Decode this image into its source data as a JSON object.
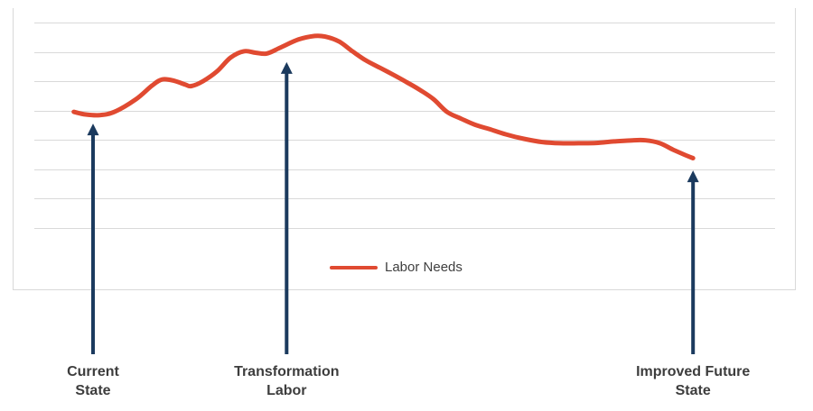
{
  "chart_data": {
    "type": "line",
    "legend": {
      "label": "Labor Needs",
      "position": "bottom-center"
    },
    "axes": {
      "x_tick_labels": [],
      "y_tick_labels": [],
      "x_range": [
        0,
        100
      ],
      "y_range": [
        0,
        7
      ],
      "gridline_count": 8,
      "grid": "horizontal-only"
    },
    "colors": {
      "line": "#e04a31",
      "arrow": "#1b3a5e",
      "grid": "#d9d9d9",
      "border": "#d9d9d9",
      "label_text": "#3d3d3d",
      "legend_text": "#3f3f3f"
    },
    "series": [
      {
        "name": "Labor Needs",
        "points": [
          [
            5.1,
            3.95
          ],
          [
            6.7,
            3.86
          ],
          [
            8.6,
            3.84
          ],
          [
            10.6,
            3.95
          ],
          [
            13.5,
            4.38
          ],
          [
            15.7,
            4.85
          ],
          [
            17.1,
            5.06
          ],
          [
            18.7,
            5.01
          ],
          [
            20.2,
            4.88
          ],
          [
            21.0,
            4.83
          ],
          [
            22.6,
            5.0
          ],
          [
            24.5,
            5.34
          ],
          [
            26.3,
            5.8
          ],
          [
            28.1,
            6.02
          ],
          [
            29.7,
            5.97
          ],
          [
            31.2,
            5.94
          ],
          [
            33.0,
            6.14
          ],
          [
            35.5,
            6.42
          ],
          [
            37.7,
            6.54
          ],
          [
            39.1,
            6.52
          ],
          [
            41.0,
            6.35
          ],
          [
            42.8,
            6.02
          ],
          [
            44.6,
            5.71
          ],
          [
            46.5,
            5.46
          ],
          [
            48.3,
            5.22
          ],
          [
            50.1,
            4.97
          ],
          [
            52.0,
            4.69
          ],
          [
            53.8,
            4.38
          ],
          [
            55.6,
            3.95
          ],
          [
            57.5,
            3.72
          ],
          [
            59.3,
            3.52
          ],
          [
            61.5,
            3.35
          ],
          [
            63.6,
            3.18
          ],
          [
            66.0,
            3.03
          ],
          [
            68.5,
            2.92
          ],
          [
            70.9,
            2.88
          ],
          [
            73.4,
            2.88
          ],
          [
            75.8,
            2.89
          ],
          [
            78.2,
            2.94
          ],
          [
            80.7,
            2.98
          ],
          [
            82.5,
            2.98
          ],
          [
            84.4,
            2.88
          ],
          [
            86.2,
            2.66
          ],
          [
            87.8,
            2.48
          ],
          [
            88.9,
            2.37
          ]
        ]
      }
    ],
    "annotations": [
      {
        "label": "Current\nState",
        "x": 7.7,
        "arrow_tip_y": 3.55
      },
      {
        "label": "Transformation\nLabor",
        "x": 33.9,
        "arrow_tip_y": 5.65
      },
      {
        "label": "Improved Future\nState",
        "x": 88.9,
        "arrow_tip_y": 1.95
      }
    ]
  }
}
